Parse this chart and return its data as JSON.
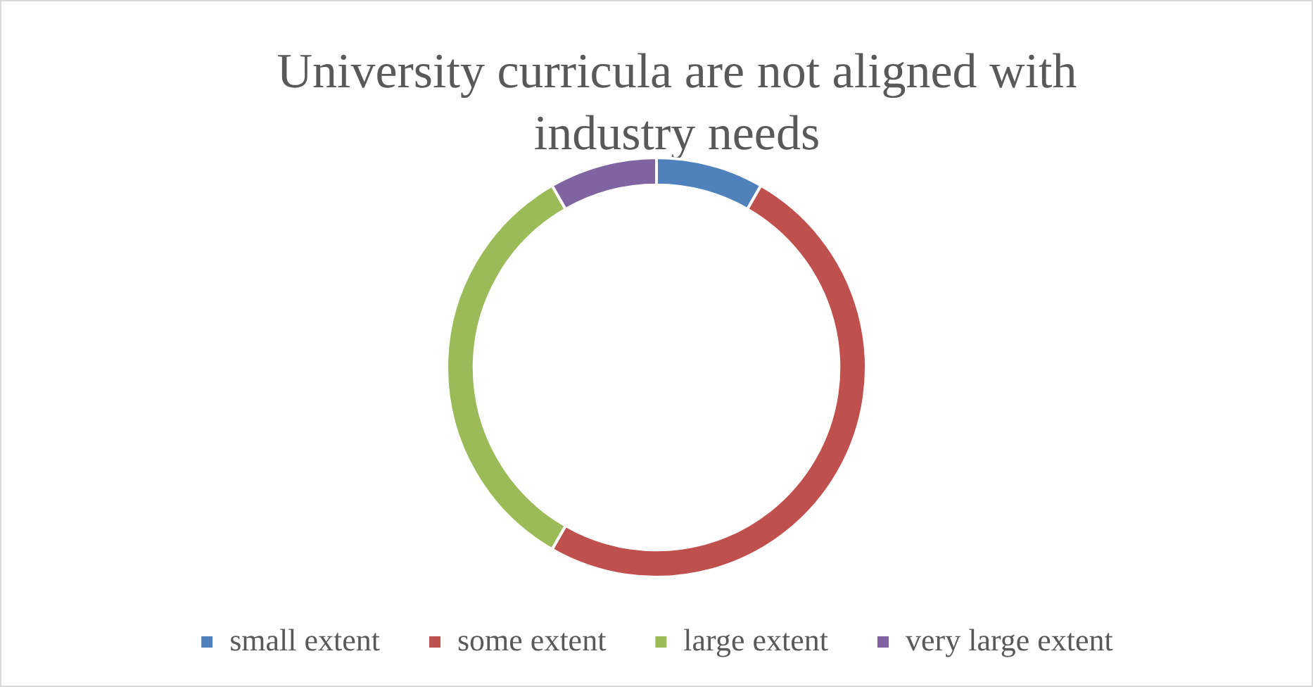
{
  "chart_data": {
    "type": "donut",
    "title": "University curricula are not aligned with industry needs",
    "categories": [
      "small extent",
      "some extent",
      "large extent",
      "very large extent"
    ],
    "values": [
      8.3,
      50,
      33.4,
      8.3
    ],
    "colors": [
      "#4f81bd",
      "#c0504d",
      "#9bbb59",
      "#8064a2"
    ],
    "legend": "bottom"
  }
}
